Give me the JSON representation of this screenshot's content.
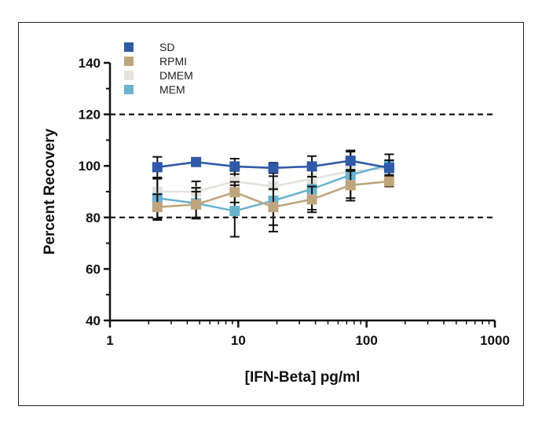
{
  "chart_data": {
    "type": "line",
    "xlabel": "[IFN-Beta] pg/ml",
    "ylabel": "Percent  Recovery",
    "xscale": "log",
    "xlim": [
      1,
      1000
    ],
    "ylim": [
      40,
      140
    ],
    "x_ticks": [
      "1",
      "10",
      "100",
      "1000"
    ],
    "y_ticks": [
      "40",
      "60",
      "80",
      "100",
      "120",
      "140"
    ],
    "reference_lines": [
      80,
      120
    ],
    "legend_position": "top-left",
    "series": [
      {
        "name": "SD",
        "color": "#2f5aa8",
        "x": [
          2.34,
          4.69,
          9.38,
          18.75,
          37.5,
          75,
          150
        ],
        "y": [
          99.5,
          101.5,
          99.8,
          99.2,
          99.8,
          102,
          99.2
        ],
        "err": [
          4,
          1,
          3,
          2,
          4,
          4,
          3
        ]
      },
      {
        "name": "RPMI",
        "color": "#bfa57d",
        "x": [
          2.34,
          4.69,
          9.38,
          18.75,
          37.5,
          75,
          150
        ],
        "y": [
          84,
          85,
          89.8,
          84,
          87,
          92.5,
          94
        ],
        "err": [
          5,
          5,
          4,
          7,
          5,
          6,
          2
        ]
      },
      {
        "name": "DMEM",
        "color": "#e4e2dc",
        "x": [
          2.34,
          4.69,
          9.38,
          18.75,
          37.5,
          75,
          150
        ],
        "y": [
          90,
          90,
          94,
          92,
          95,
          98,
          99
        ],
        "err": [
          5,
          4,
          4,
          4,
          5,
          4,
          3
        ]
      },
      {
        "name": "MEM",
        "color": "#6ab3cf",
        "x": [
          2.34,
          4.69,
          9.38,
          18.75,
          37.5,
          75,
          150
        ],
        "y": [
          87.5,
          85.5,
          82.5,
          86.5,
          91,
          96.5,
          100.5
        ],
        "err": [
          8,
          6,
          10,
          12,
          8,
          9,
          4
        ]
      }
    ]
  }
}
